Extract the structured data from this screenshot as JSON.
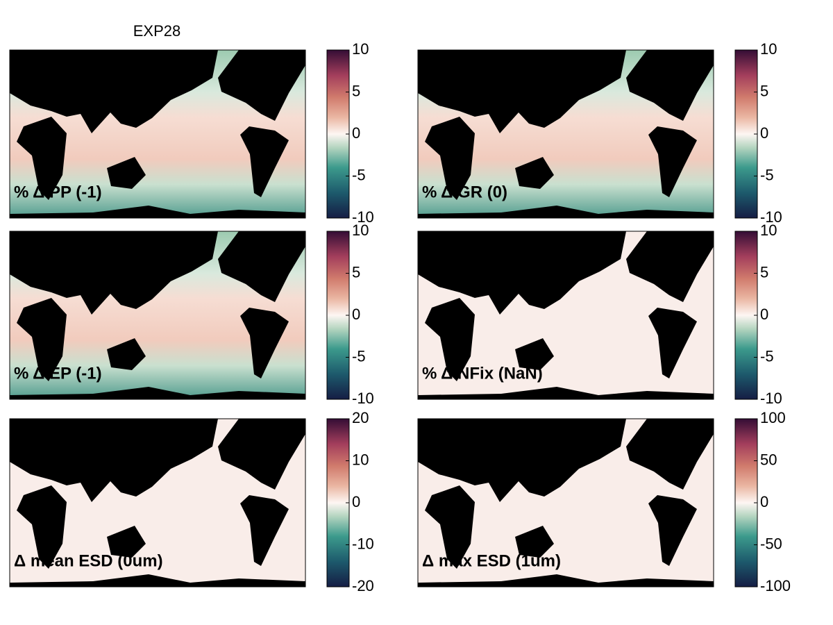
{
  "title": "EXP28",
  "panels": [
    {
      "label": "% Δ PP (-1)",
      "colorbar": {
        "lim": [
          -10,
          10
        ],
        "ticks": [
          10,
          5,
          0,
          -5,
          -10
        ]
      }
    },
    {
      "label": "% Δ GR (0)",
      "colorbar": {
        "lim": [
          -10,
          10
        ],
        "ticks": [
          10,
          5,
          0,
          -5,
          -10
        ]
      }
    },
    {
      "label": "% Δ EP (-1)",
      "colorbar": {
        "lim": [
          -10,
          10
        ],
        "ticks": [
          10,
          5,
          0,
          -5,
          -10
        ]
      }
    },
    {
      "label": "% Δ NFix (NaN)",
      "colorbar": {
        "lim": [
          -10,
          10
        ],
        "ticks": [
          10,
          5,
          0,
          -5,
          -10
        ]
      }
    },
    {
      "label": "Δ mean ESD (0um)",
      "colorbar": {
        "lim": [
          -20,
          20
        ],
        "ticks": [
          20,
          10,
          0,
          -10,
          -20
        ]
      }
    },
    {
      "label": "Δ max ESD (1um)",
      "colorbar": {
        "lim": [
          -100,
          100
        ],
        "ticks": [
          100,
          50,
          0,
          -50,
          -100
        ]
      }
    }
  ]
}
